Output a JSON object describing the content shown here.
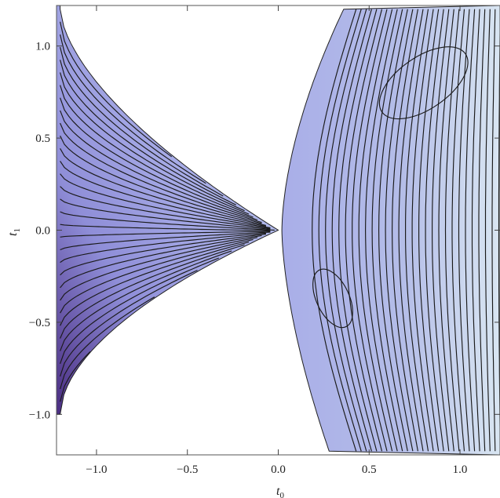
{
  "chart_data": {
    "type": "contour",
    "title": "",
    "xlabel": "t",
    "xlabel_sub": "0",
    "ylabel": "t",
    "ylabel_sub": "1",
    "xlim": [
      -1.22,
      1.22
    ],
    "ylim": [
      -1.22,
      1.22
    ],
    "xticks": [
      -1.0,
      -0.5,
      0.0,
      0.5,
      1.0
    ],
    "yticks": [
      -1.0,
      -0.5,
      0.0,
      0.5,
      1.0
    ],
    "xtick_labels": [
      "−1.0",
      "−0.5",
      "0.0",
      "0.5",
      "1.0"
    ],
    "ytick_labels": [
      "−1.0",
      "−0.5",
      "0.0",
      "0.5",
      "1.0"
    ],
    "grid": false,
    "fill_colors": {
      "light": "#e4ecf6",
      "mid": "#a9aee8",
      "dark": "#4a2d82"
    },
    "left_region": {
      "boundary_top_x_at_ymax": -1.2,
      "boundary_bottom_y_at_xmin": -1.0,
      "level_curves": 32
    },
    "right_region": {
      "boundary_top_x_at_ymax": 0.36,
      "local_extrema": [
        {
          "kind": "closed-contour",
          "center": [
            0.8,
            0.8
          ]
        },
        {
          "kind": "closed-contour",
          "center": [
            0.3,
            -0.37
          ]
        }
      ],
      "level_curves": 30
    }
  }
}
